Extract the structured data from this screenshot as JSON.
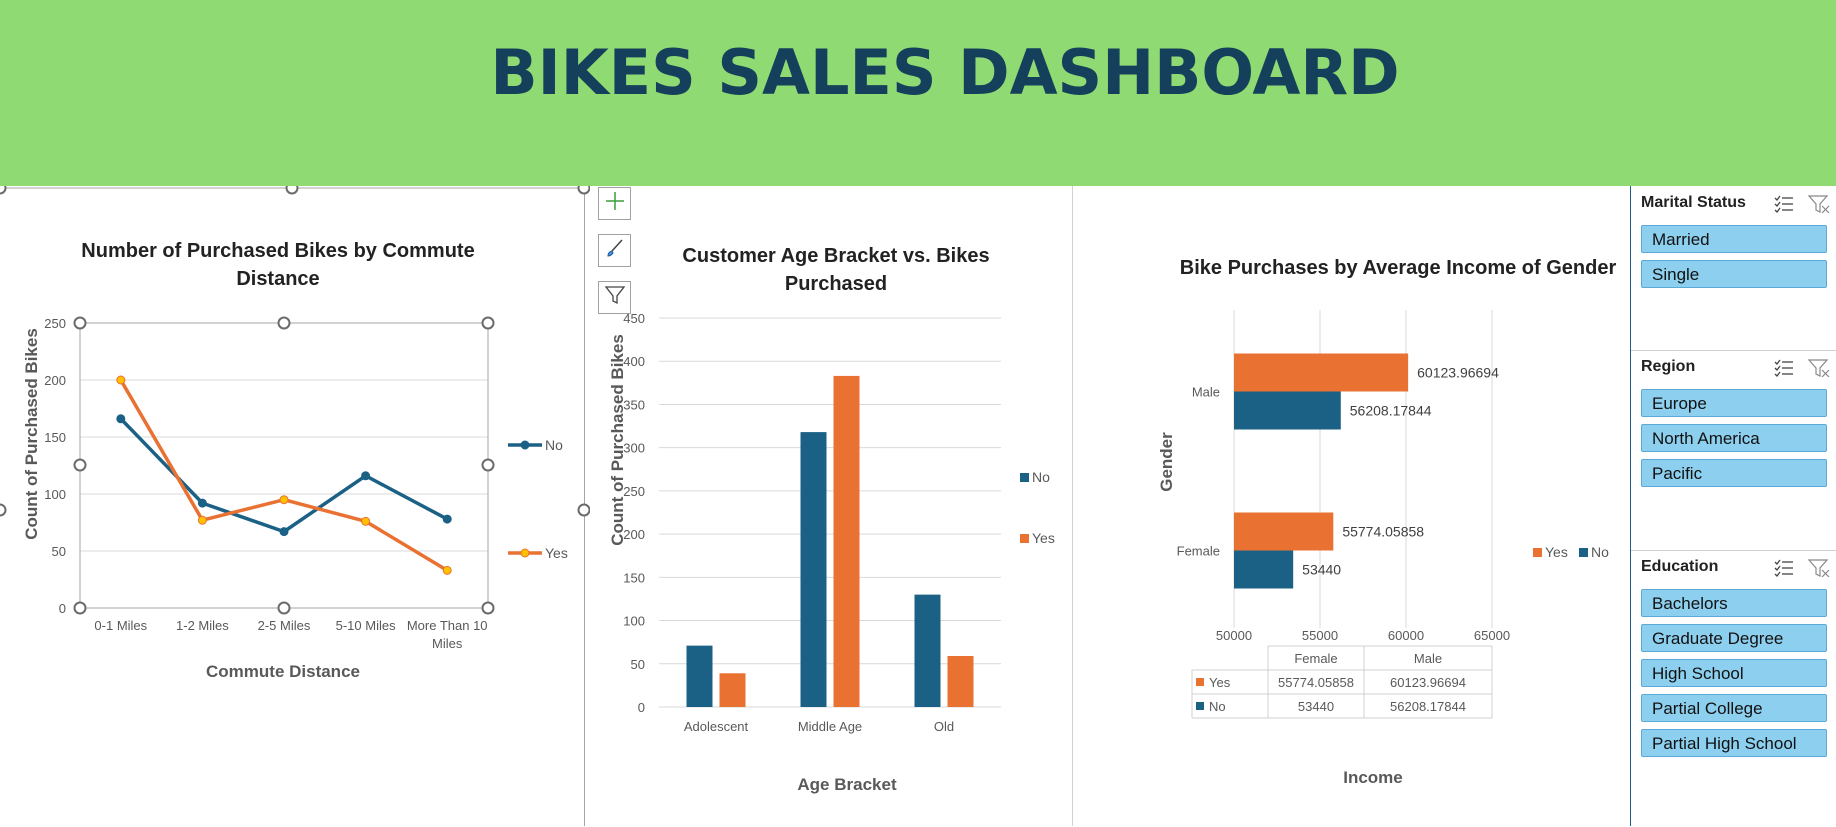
{
  "header": {
    "title": "BIKES SALES DASHBOARD",
    "bg": "#8FDA72",
    "color": "#15405C"
  },
  "colors": {
    "no": "#1B6185",
    "yes": "#E97132",
    "slicer_item": "#8DCFEE"
  },
  "chart_data": [
    {
      "type": "line",
      "title": "Number of Purchased Bikes by Commute Distance",
      "xlabel": "Commute Distance",
      "ylabel": "Count of Purchased Bikes",
      "categories": [
        "0-1 Miles",
        "1-2 Miles",
        "2-5 Miles",
        "5-10 Miles",
        "More Than 10 Miles"
      ],
      "series": [
        {
          "name": "No",
          "values": [
            166,
            92,
            67,
            116,
            78
          ]
        },
        {
          "name": "Yes",
          "values": [
            200,
            77,
            95,
            76,
            33
          ]
        }
      ],
      "ylim": [
        0,
        250
      ],
      "yticks": [
        "0",
        "50",
        "100",
        "150",
        "200",
        "250"
      ],
      "legend": "right",
      "grid": true
    },
    {
      "type": "bar",
      "title": "Customer Age Bracket vs. Bikes Purchased",
      "xlabel": "Age Bracket",
      "ylabel": "Count of Purchased Bikes",
      "categories": [
        "Adolescent",
        "Middle Age",
        "Old"
      ],
      "series": [
        {
          "name": "No",
          "values": [
            71,
            318,
            130
          ]
        },
        {
          "name": "Yes",
          "values": [
            39,
            383,
            59
          ]
        }
      ],
      "ylim": [
        0,
        450
      ],
      "yticks": [
        "0",
        "50",
        "100",
        "150",
        "200",
        "250",
        "300",
        "350",
        "400",
        "450"
      ],
      "legend": "right",
      "grid": true
    },
    {
      "type": "bar",
      "orientation": "horizontal",
      "title": "Bike Purchases by Average Income of Gender",
      "xlabel": "Income",
      "ylabel": "Gender",
      "categories": [
        "Female",
        "Male"
      ],
      "series": [
        {
          "name": "No",
          "values": [
            53440,
            56208.17844
          ],
          "labels": [
            "53440",
            "56208.17844"
          ]
        },
        {
          "name": "Yes",
          "values": [
            55774.05858,
            60123.96694
          ],
          "labels": [
            "55774.05858",
            "60123.96694"
          ]
        }
      ],
      "xlim": [
        50000,
        65000
      ],
      "xticks": [
        "50000",
        "55000",
        "60000",
        "65000"
      ],
      "legend": "right",
      "grid": true,
      "data_table": {
        "headers": [
          "Female",
          "Male"
        ],
        "rows": [
          {
            "name": "Yes",
            "values": [
              "55774.05858",
              "60123.96694"
            ]
          },
          {
            "name": "No",
            "values": [
              "53440",
              "56208.17844"
            ]
          }
        ]
      }
    }
  ],
  "slicers": [
    {
      "title": "Marital Status",
      "items": [
        "Married",
        "Single"
      ]
    },
    {
      "title": "Region",
      "items": [
        "Europe",
        "North America",
        "Pacific"
      ]
    },
    {
      "title": "Education",
      "items": [
        "Bachelors",
        "Graduate Degree",
        "High School",
        "Partial College",
        "Partial High School"
      ]
    }
  ],
  "chart_tools": {
    "icons": [
      "plus-icon",
      "brush-icon",
      "filter-icon"
    ]
  }
}
